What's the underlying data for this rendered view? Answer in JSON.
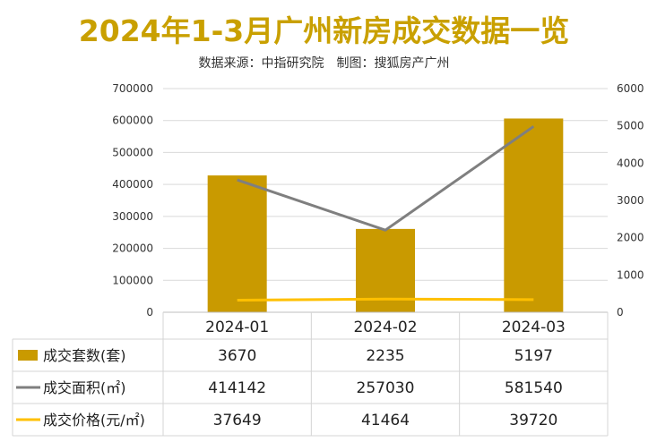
{
  "title": "2024年1-3月广州新房成交数据一览",
  "subtitle": "数据来源：中指研究院　制图：搜狐房产广州",
  "colors": {
    "bar": "#c99a00",
    "area_line": "#7f7f7f",
    "price_line": "#ffc000",
    "title": "#c9a000"
  },
  "chart_data": {
    "type": "bar",
    "categories": [
      "2024-01",
      "2024-02",
      "2024-03"
    ],
    "series": [
      {
        "name": "成交套数(套)",
        "type": "bar",
        "axis": "right",
        "values": [
          3670,
          2235,
          5197
        ],
        "color": "#c99a00"
      },
      {
        "name": "成交面积(㎡)",
        "type": "line",
        "axis": "left",
        "values": [
          414142,
          257030,
          581540
        ],
        "color": "#7f7f7f"
      },
      {
        "name": "成交价格(元/㎡)",
        "type": "line",
        "axis": "left",
        "values": [
          37649,
          41464,
          39720
        ],
        "color": "#ffc000"
      }
    ],
    "y_left": {
      "min": 0,
      "max": 700000,
      "ticks": [
        "0",
        "100000",
        "200000",
        "300000",
        "400000",
        "500000",
        "600000",
        "700000"
      ]
    },
    "y_right": {
      "min": 0,
      "max": 6000,
      "ticks": [
        "0",
        "1000",
        "2000",
        "3000",
        "4000",
        "5000",
        "6000"
      ]
    },
    "grid": true,
    "legend": "data-table"
  },
  "table": {
    "rows": [
      {
        "label": "成交套数(套)",
        "key": "bar",
        "cells": [
          "3670",
          "2235",
          "5197"
        ]
      },
      {
        "label": "成交面积(㎡)",
        "key": "area",
        "cells": [
          "414142",
          "257030",
          "581540"
        ]
      },
      {
        "label": "成交价格(元/㎡)",
        "key": "price",
        "cells": [
          "37649",
          "41464",
          "39720"
        ]
      }
    ]
  }
}
